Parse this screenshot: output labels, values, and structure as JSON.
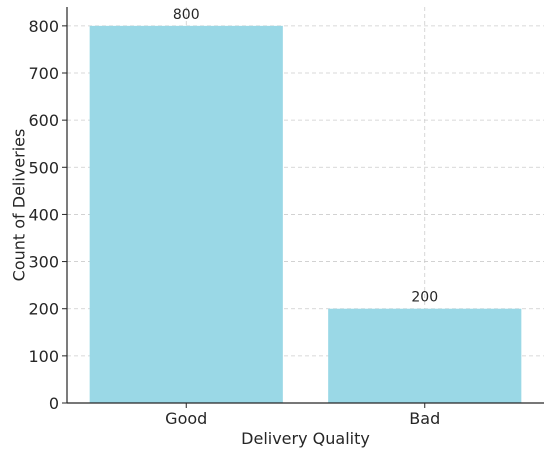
{
  "chart_data": {
    "type": "bar",
    "title": "",
    "categories": [
      "Good",
      "Bad"
    ],
    "values": [
      800,
      200
    ],
    "data_labels": [
      "800",
      "200"
    ],
    "xlabel": "Delivery Quality",
    "ylabel": "Count of Deliveries",
    "ylim": [
      0,
      840
    ],
    "yticks": [
      0,
      100,
      200,
      300,
      400,
      500,
      600,
      700,
      800
    ],
    "grid": true,
    "legend": "none",
    "colors": {
      "bar": "#9ad8e6",
      "grid": "#cccccc",
      "axis": "#262626"
    }
  }
}
